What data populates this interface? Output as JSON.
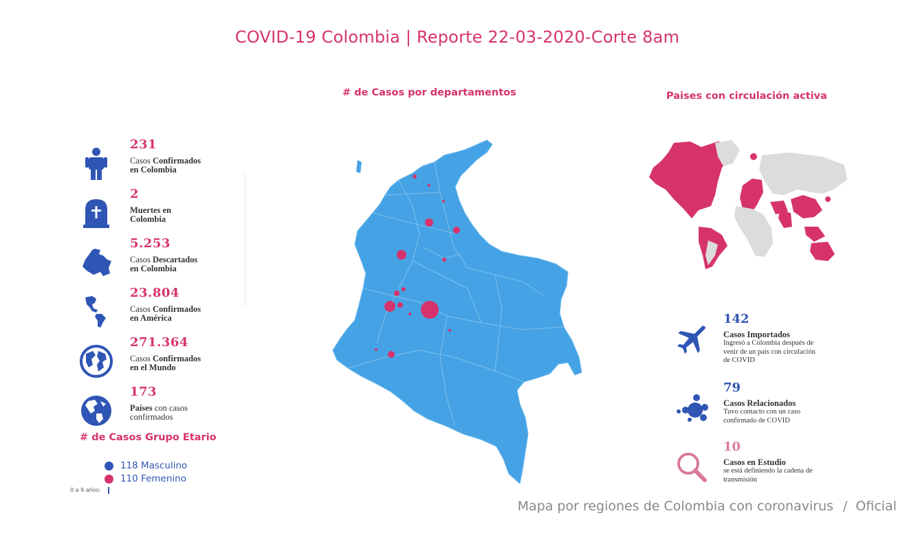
{
  "title": "COVID-19 Colombia | Reporte 22-03-2020-Corte 8am",
  "colors": {
    "accent": "#d6336c",
    "blue": "#2f55b5",
    "map": "#45a3e5",
    "gray": "#dcdcdc"
  },
  "left_stats": [
    {
      "value": "231",
      "prefix": "Casos",
      "bold": "Confirmados",
      "line2": "en Colombia",
      "icon": "person-icon"
    },
    {
      "value": "2",
      "prefix": "",
      "bold": "Muertes en",
      "line2": "Colombia",
      "icon": "tombstone-icon"
    },
    {
      "value": "5.253",
      "prefix": "Casos",
      "bold": "Descartados",
      "line2": "en Colombia",
      "icon": "colombia-map-icon"
    },
    {
      "value": "23.804",
      "prefix": "Casos",
      "bold": "Confirmados",
      "line2": "en América",
      "icon": "americas-icon"
    },
    {
      "value": "271.364",
      "prefix": "Casos",
      "bold": "Confirmados",
      "line2": "en el Mundo",
      "icon": "globe-icon"
    },
    {
      "value": "173",
      "prefix": "",
      "bold": "Países",
      "suffix": "con casos",
      "line2": "confirmados",
      "icon": "globe-americas-icon"
    }
  ],
  "age_group": {
    "title": "# de Casos Grupo Etario",
    "legend": [
      {
        "label": "118 Masculino",
        "color": "#2f55b5"
      },
      {
        "label": "110 Femenino",
        "color": "#d6336c"
      }
    ],
    "axis_label": "0 a 9 años:"
  },
  "map_section": {
    "title": "# de Casos por departamentos"
  },
  "world_section": {
    "title": "Paises con circulación activa"
  },
  "right_stats": [
    {
      "value": "142",
      "title": "Casos Importados",
      "sub": "Ingresó a Colombia después de venir de un país con circulación de COVID",
      "icon": "airplane-icon",
      "color": "#2f55b5"
    },
    {
      "value": "79",
      "title": "Casos Relacionados",
      "sub": "Tuvo contacto con un caso confirmado de COVID",
      "icon": "cluster-icon",
      "color": "#2f55b5"
    },
    {
      "value": "10",
      "title": "Casos en Estudio",
      "sub": "se está definiendo la cadena de transmisión",
      "icon": "magnifier-icon",
      "color": "#d6336c"
    }
  ],
  "caption": {
    "text": "Mapa por regiones de Colombia con coronavirus",
    "sep": "/",
    "source": "Oficial"
  }
}
